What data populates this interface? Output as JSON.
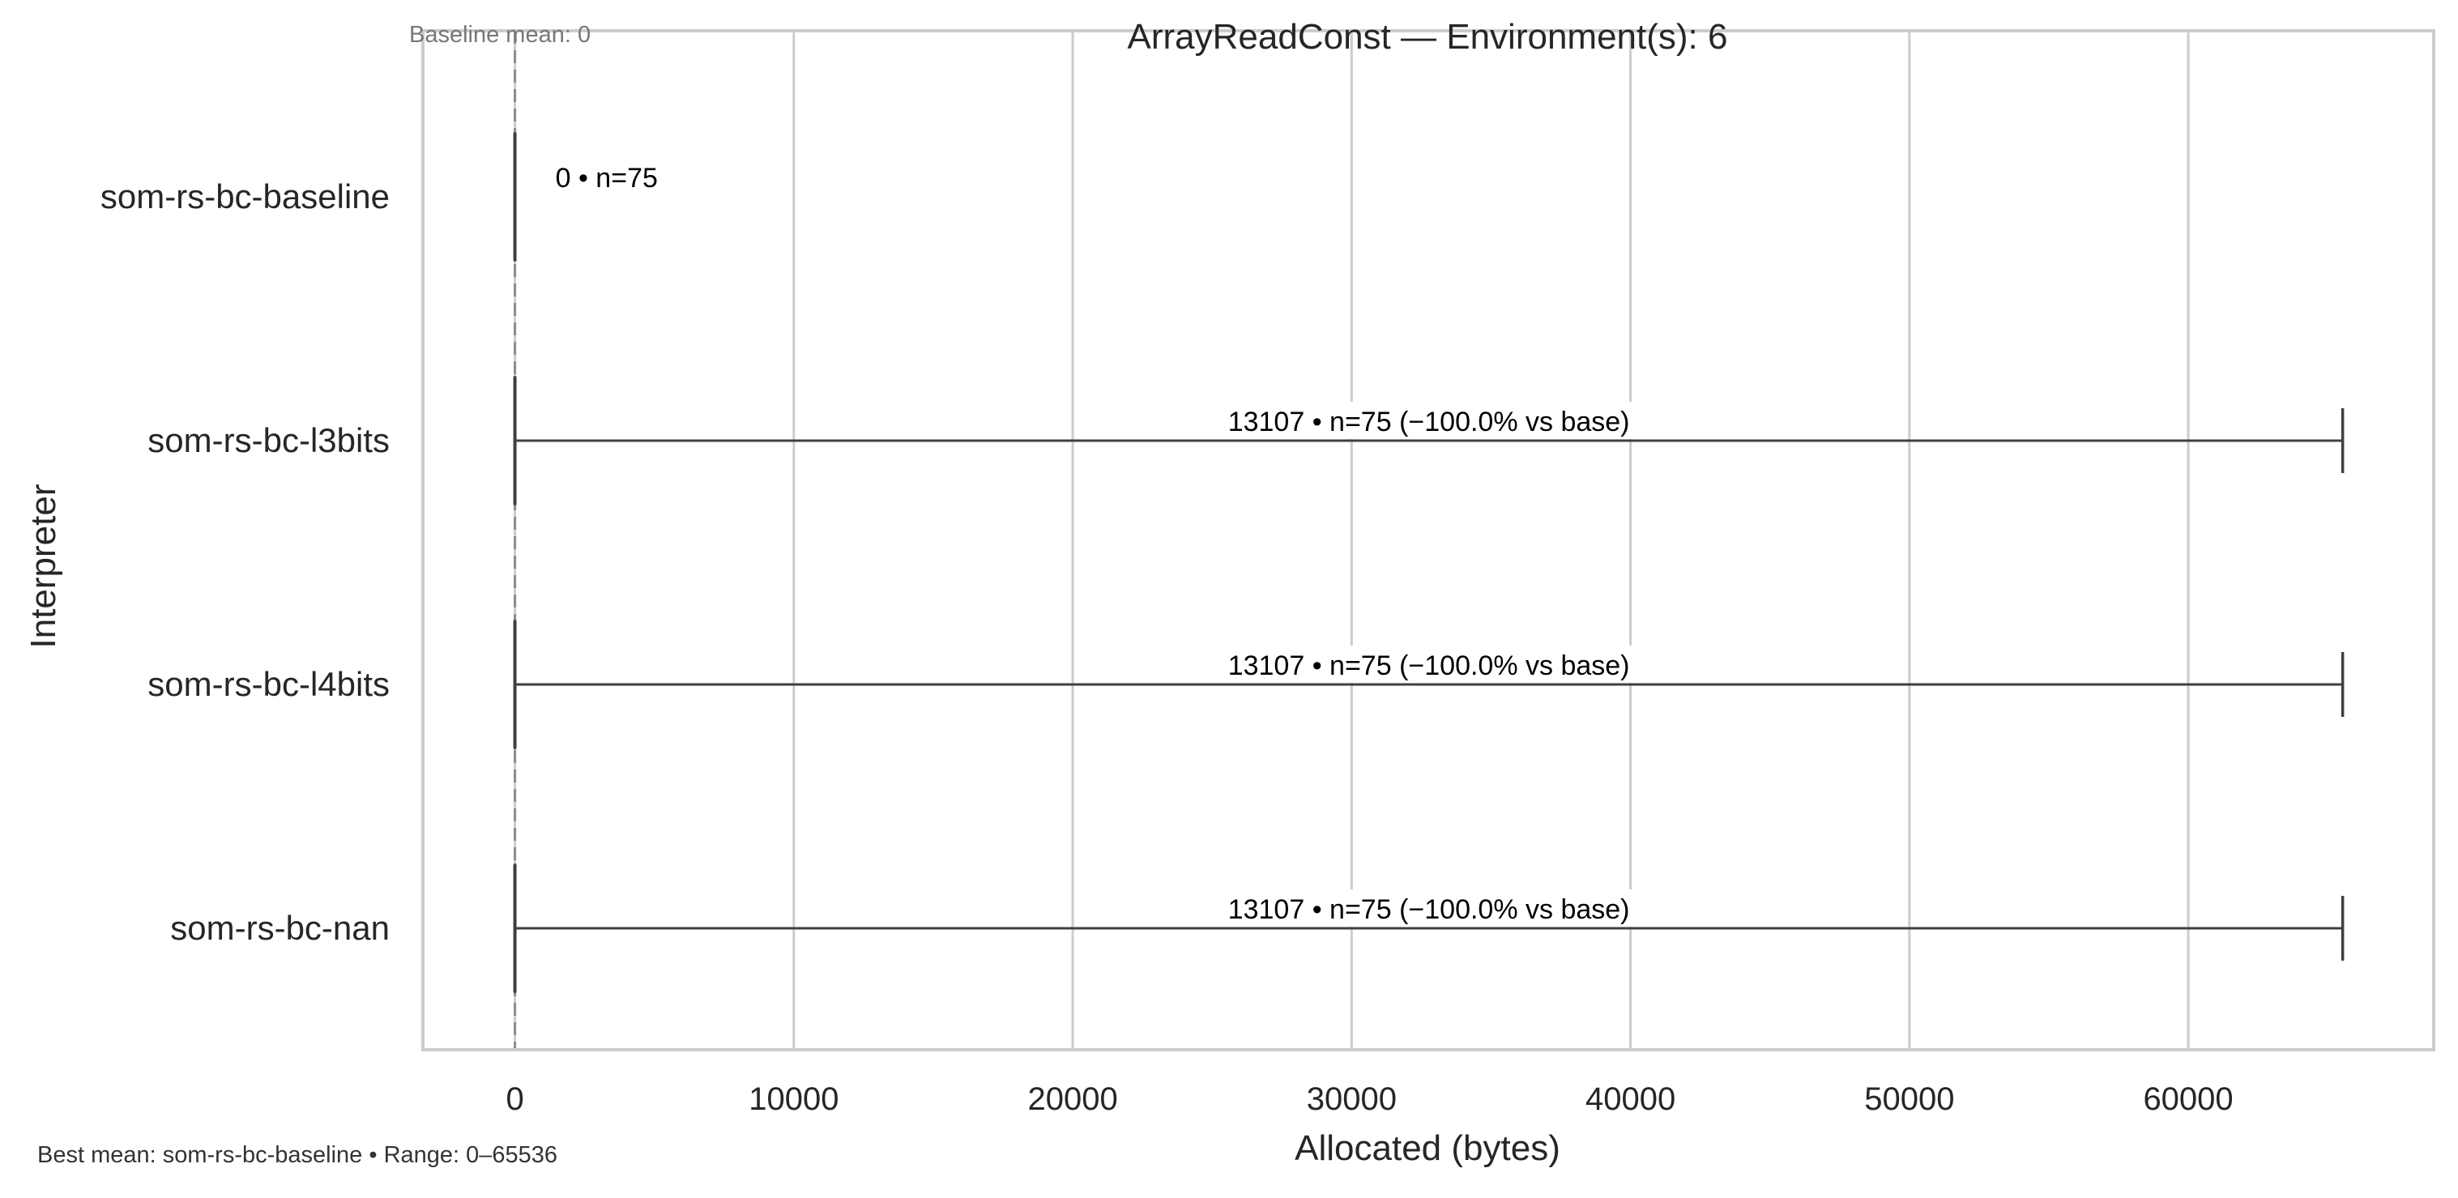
{
  "chart_data": {
    "type": "box",
    "orientation": "horizontal",
    "title": "ArrayReadConst — Environment(s): 6",
    "xlabel": "Allocated (bytes)",
    "ylabel": "Interpreter",
    "xlim": [
      -3300,
      68800
    ],
    "xticks": [
      0,
      10000,
      20000,
      30000,
      40000,
      50000,
      60000
    ],
    "grid": true,
    "baseline_value": 0,
    "baseline_note": "Baseline mean: 0",
    "footer_note": "Best mean: som-rs-bc-baseline • Range: 0–65536",
    "categories": [
      "som-rs-bc-baseline",
      "som-rs-bc-l3bits",
      "som-rs-bc-l4bits",
      "som-rs-bc-nan"
    ],
    "series": [
      {
        "values": [
          {
            "category": "som-rs-bc-baseline",
            "min": 0,
            "q1": 0,
            "median": 0,
            "q3": 0,
            "max": 0,
            "annotation": "0 • n=75"
          },
          {
            "category": "som-rs-bc-l3bits",
            "min": 0,
            "q1": 0,
            "median": 0,
            "q3": 0,
            "max": 65536,
            "annotation": "13107 • n=75 (−100.0% vs base)"
          },
          {
            "category": "som-rs-bc-l4bits",
            "min": 0,
            "q1": 0,
            "median": 0,
            "q3": 0,
            "max": 65536,
            "annotation": "13107 • n=75 (−100.0% vs base)"
          },
          {
            "category": "som-rs-bc-nan",
            "min": 0,
            "q1": 0,
            "median": 0,
            "q3": 0,
            "max": 65536,
            "annotation": "13107 • n=75 (−100.0% vs base)"
          }
        ]
      }
    ],
    "colors": {
      "axes_edge": "#cccccc",
      "grid": "#cccccc",
      "box_line": "#3f3f3f",
      "baseline_line": "#8c8c8c",
      "text": "#262626",
      "annotation_text": "#000000",
      "note_text": "#777777",
      "footer_text": "#333333"
    }
  }
}
